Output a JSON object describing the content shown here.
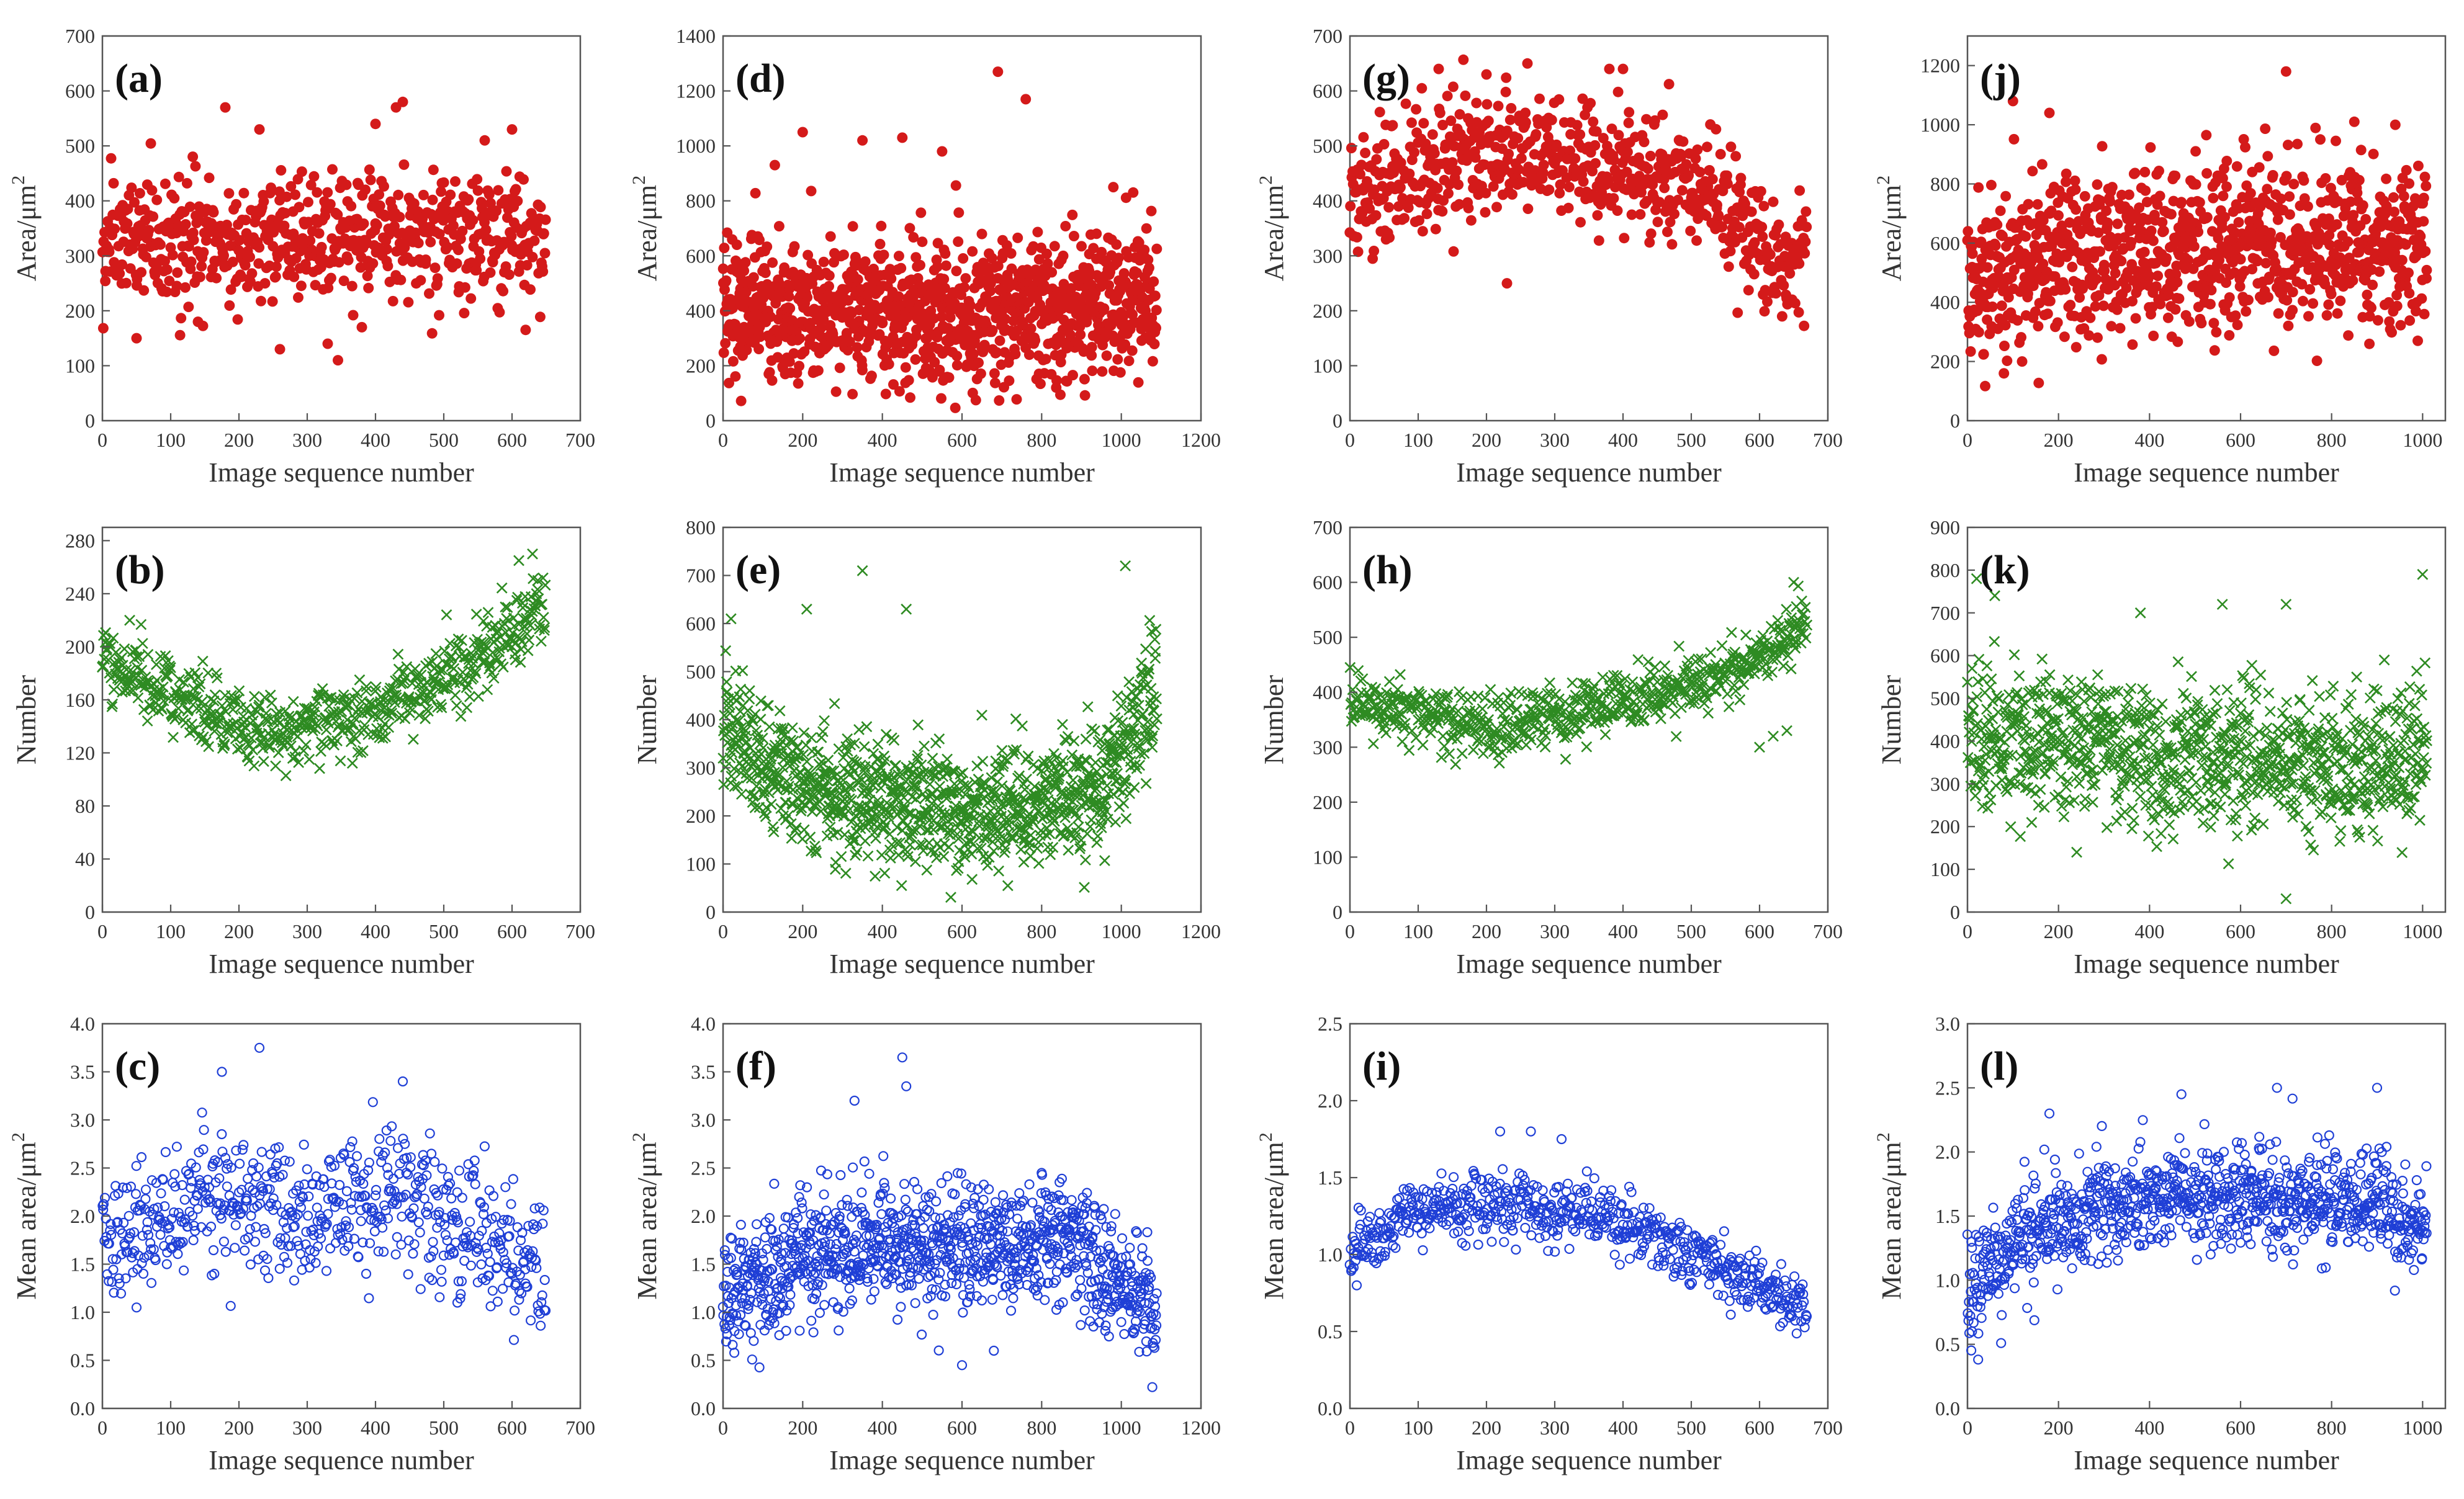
{
  "figure": {
    "colors": {
      "area": "#d41a1a",
      "number": "#2e8b22",
      "mean": "#1f3fd6",
      "axis": "#555555"
    }
  },
  "chart_data": [
    {
      "id": "a",
      "label": "(a)",
      "type": "scatter",
      "marker": "dot",
      "series": "area",
      "xlabel": "Image sequence number",
      "ylabel": "Area/μm2",
      "ylabel_text": "Area/μm",
      "ylabel_sup": "2",
      "xlim": [
        0,
        700
      ],
      "ylim": [
        0,
        700
      ],
      "xticks": [
        "0",
        "100",
        "200",
        "300",
        "400",
        "500",
        "600",
        "700"
      ],
      "yticks": [
        "0",
        "100",
        "200",
        "300",
        "400",
        "500",
        "600",
        "700"
      ],
      "n": 650,
      "trend": [
        [
          0,
          320
        ],
        [
          200,
          330
        ],
        [
          400,
          340
        ],
        [
          650,
          330
        ]
      ],
      "spread": 60,
      "outliers": [
        [
          50,
          150
        ],
        [
          140,
          180
        ],
        [
          180,
          570
        ],
        [
          230,
          530
        ],
        [
          260,
          130
        ],
        [
          330,
          140
        ],
        [
          345,
          110
        ],
        [
          380,
          170
        ],
        [
          400,
          540
        ],
        [
          430,
          570
        ],
        [
          440,
          580
        ],
        [
          560,
          510
        ],
        [
          600,
          530
        ]
      ]
    },
    {
      "id": "d",
      "label": "(d)",
      "type": "scatter",
      "marker": "dot",
      "series": "area",
      "xlabel": "Image sequence number",
      "ylabel": "Area/μm2",
      "ylabel_text": "Area/μm",
      "ylabel_sup": "2",
      "xlim": [
        0,
        1200
      ],
      "ylim": [
        0,
        1400
      ],
      "xticks": [
        "0",
        "200",
        "400",
        "600",
        "800",
        "1000",
        "1200"
      ],
      "yticks": [
        "0",
        "200",
        "400",
        "600",
        "800",
        "1000",
        "1200",
        "1400"
      ],
      "n": 1090,
      "trend": [
        [
          0,
          420
        ],
        [
          300,
          400
        ],
        [
          600,
          380
        ],
        [
          900,
          410
        ],
        [
          1090,
          440
        ]
      ],
      "spread": 130,
      "outliers": [
        [
          200,
          1050
        ],
        [
          450,
          1030
        ],
        [
          550,
          980
        ],
        [
          690,
          1270
        ],
        [
          760,
          1170
        ],
        [
          130,
          930
        ],
        [
          350,
          1020
        ],
        [
          980,
          850
        ]
      ]
    },
    {
      "id": "g",
      "label": "(g)",
      "type": "scatter",
      "marker": "dot",
      "series": "area",
      "xlabel": "Image sequence number",
      "ylabel": "Area/μm2",
      "ylabel_text": "Area/μm",
      "ylabel_sup": "2",
      "xlim": [
        0,
        700
      ],
      "ylim": [
        0,
        700
      ],
      "xticks": [
        "0",
        "100",
        "200",
        "300",
        "400",
        "500",
        "600",
        "700"
      ],
      "yticks": [
        "0",
        "100",
        "200",
        "300",
        "400",
        "500",
        "600",
        "700"
      ],
      "n": 670,
      "trend": [
        [
          0,
          400
        ],
        [
          150,
          480
        ],
        [
          300,
          490
        ],
        [
          450,
          440
        ],
        [
          550,
          400
        ],
        [
          620,
          300
        ],
        [
          670,
          300
        ]
      ],
      "spread": 55,
      "outliers": [
        [
          130,
          640
        ],
        [
          200,
          630
        ],
        [
          260,
          650
        ],
        [
          380,
          640
        ],
        [
          400,
          640
        ],
        [
          230,
          250
        ]
      ]
    },
    {
      "id": "j",
      "label": "(j)",
      "type": "scatter",
      "marker": "dot",
      "series": "area",
      "xlabel": "Image sequence number",
      "ylabel": "Area/μm2",
      "ylabel_text": "Area/μm",
      "ylabel_sup": "2",
      "xlim": [
        0,
        1050
      ],
      "ylim": [
        0,
        1300
      ],
      "xticks": [
        "0",
        "200",
        "400",
        "600",
        "800",
        "1000"
      ],
      "yticks": [
        "0",
        "200",
        "400",
        "600",
        "800",
        "1000",
        "1200"
      ],
      "n": 1010,
      "trend": [
        [
          0,
          450
        ],
        [
          200,
          560
        ],
        [
          500,
          580
        ],
        [
          800,
          600
        ],
        [
          1010,
          560
        ]
      ],
      "spread": 140,
      "outliers": [
        [
          100,
          1080
        ],
        [
          180,
          1040
        ],
        [
          700,
          1180
        ],
        [
          850,
          1010
        ],
        [
          940,
          1000
        ],
        [
          80,
          160
        ],
        [
          120,
          200
        ]
      ]
    },
    {
      "id": "b",
      "label": "(b)",
      "type": "scatter",
      "marker": "x",
      "series": "number",
      "xlabel": "Image sequence number",
      "ylabel": "Number",
      "xlim": [
        0,
        700
      ],
      "ylim": [
        0,
        290
      ],
      "xticks": [
        "0",
        "100",
        "200",
        "300",
        "400",
        "500",
        "600",
        "700"
      ],
      "yticks": [
        "0",
        "40",
        "80",
        "120",
        "160",
        "200",
        "240",
        "280"
      ],
      "n": 650,
      "trend": [
        [
          0,
          195
        ],
        [
          100,
          165
        ],
        [
          200,
          140
        ],
        [
          300,
          140
        ],
        [
          400,
          150
        ],
        [
          500,
          175
        ],
        [
          600,
          210
        ],
        [
          650,
          235
        ]
      ],
      "spread": 14,
      "outliers": [
        [
          630,
          270
        ],
        [
          610,
          265
        ],
        [
          40,
          220
        ]
      ]
    },
    {
      "id": "e",
      "label": "(e)",
      "type": "scatter",
      "marker": "x",
      "series": "number",
      "xlabel": "Image sequence number",
      "ylabel": "Number",
      "xlim": [
        0,
        1200
      ],
      "ylim": [
        0,
        800
      ],
      "xticks": [
        "0",
        "200",
        "400",
        "600",
        "800",
        "1000",
        "1200"
      ],
      "yticks": [
        "0",
        "100",
        "200",
        "300",
        "400",
        "500",
        "600",
        "700",
        "800"
      ],
      "n": 1090,
      "trend": [
        [
          0,
          380
        ],
        [
          200,
          260
        ],
        [
          400,
          220
        ],
        [
          600,
          210
        ],
        [
          800,
          220
        ],
        [
          950,
          260
        ],
        [
          1090,
          470
        ]
      ],
      "spread": 65,
      "outliers": [
        [
          350,
          710
        ],
        [
          1010,
          720
        ],
        [
          460,
          630
        ],
        [
          210,
          630
        ],
        [
          20,
          610
        ]
      ]
    },
    {
      "id": "h",
      "label": "(h)",
      "type": "scatter",
      "marker": "x",
      "series": "number",
      "xlabel": "Image sequence number",
      "ylabel": "Number",
      "xlim": [
        0,
        700
      ],
      "ylim": [
        0,
        700
      ],
      "xticks": [
        "0",
        "100",
        "200",
        "300",
        "400",
        "500",
        "600",
        "700"
      ],
      "yticks": [
        "0",
        "100",
        "200",
        "300",
        "400",
        "500",
        "600",
        "700"
      ],
      "n": 670,
      "trend": [
        [
          0,
          380
        ],
        [
          200,
          340
        ],
        [
          300,
          360
        ],
        [
          400,
          380
        ],
        [
          500,
          410
        ],
        [
          600,
          460
        ],
        [
          670,
          530
        ]
      ],
      "spread": 28,
      "outliers": [
        [
          650,
          600
        ],
        [
          600,
          300
        ],
        [
          620,
          320
        ],
        [
          640,
          330
        ]
      ]
    },
    {
      "id": "k",
      "label": "(k)",
      "type": "scatter",
      "marker": "x",
      "series": "number",
      "xlabel": "Image sequence number",
      "ylabel": "Number",
      "xlim": [
        0,
        1050
      ],
      "ylim": [
        0,
        900
      ],
      "xticks": [
        "0",
        "200",
        "400",
        "600",
        "800",
        "1000"
      ],
      "yticks": [
        "0",
        "100",
        "200",
        "300",
        "400",
        "500",
        "600",
        "700",
        "800",
        "900"
      ],
      "n": 1010,
      "trend": [
        [
          0,
          420
        ],
        [
          200,
          400
        ],
        [
          500,
          360
        ],
        [
          800,
          350
        ],
        [
          1010,
          350
        ]
      ],
      "spread": 85,
      "outliers": [
        [
          20,
          780
        ],
        [
          1000,
          790
        ],
        [
          60,
          740
        ],
        [
          560,
          720
        ],
        [
          700,
          720
        ],
        [
          380,
          700
        ],
        [
          240,
          140
        ]
      ]
    },
    {
      "id": "c",
      "label": "(c)",
      "type": "scatter",
      "marker": "circle",
      "series": "mean",
      "xlabel": "Image sequence number",
      "ylabel": "Mean area/μm2",
      "ylabel_text": "Mean area/μm",
      "ylabel_sup": "2",
      "xlim": [
        0,
        700
      ],
      "ylim": [
        0,
        4.0
      ],
      "xticks": [
        "0",
        "100",
        "200",
        "300",
        "400",
        "500",
        "600",
        "700"
      ],
      "yticks": [
        "0.0",
        "0.5",
        "1.0",
        "1.5",
        "2.0",
        "2.5",
        "3.0",
        "3.5",
        "4.0"
      ],
      "n": 650,
      "trend": [
        [
          0,
          1.7
        ],
        [
          150,
          2.2
        ],
        [
          300,
          2.0
        ],
        [
          420,
          2.3
        ],
        [
          550,
          1.8
        ],
        [
          650,
          1.5
        ]
      ],
      "spread": 0.35,
      "outliers": [
        [
          230,
          3.75
        ],
        [
          175,
          3.5
        ],
        [
          440,
          3.4
        ],
        [
          50,
          1.05
        ],
        [
          520,
          1.1
        ]
      ]
    },
    {
      "id": "f",
      "label": "(f)",
      "type": "scatter",
      "marker": "circle",
      "series": "mean",
      "xlabel": "Image sequence number",
      "ylabel": "Mean area/μm2",
      "ylabel_text": "Mean area/μm",
      "ylabel_sup": "2",
      "xlim": [
        0,
        1200
      ],
      "ylim": [
        0,
        4.0
      ],
      "xticks": [
        "0",
        "200",
        "400",
        "600",
        "800",
        "1000",
        "1200"
      ],
      "yticks": [
        "0.0",
        "0.5",
        "1.0",
        "1.5",
        "2.0",
        "2.5",
        "3.0",
        "3.5",
        "4.0"
      ],
      "n": 1090,
      "trend": [
        [
          0,
          1.1
        ],
        [
          200,
          1.6
        ],
        [
          400,
          1.7
        ],
        [
          600,
          1.6
        ],
        [
          850,
          1.8
        ],
        [
          1000,
          1.3
        ],
        [
          1090,
          1.0
        ]
      ],
      "spread": 0.32,
      "outliers": [
        [
          450,
          3.65
        ],
        [
          460,
          3.35
        ],
        [
          330,
          3.2
        ],
        [
          600,
          0.45
        ],
        [
          680,
          0.6
        ]
      ]
    },
    {
      "id": "i",
      "label": "(i)",
      "type": "scatter",
      "marker": "circle",
      "series": "mean",
      "xlabel": "Image sequence number",
      "ylabel": "Mean area/μm2",
      "ylabel_text": "Mean area/μm",
      "ylabel_sup": "2",
      "xlim": [
        0,
        700
      ],
      "ylim": [
        0,
        2.5
      ],
      "xticks": [
        "0",
        "100",
        "200",
        "300",
        "400",
        "500",
        "600",
        "700"
      ],
      "yticks": [
        "0.0",
        "0.5",
        "1.0",
        "1.5",
        "2.0",
        "2.5"
      ],
      "n": 670,
      "trend": [
        [
          0,
          1.0
        ],
        [
          100,
          1.3
        ],
        [
          250,
          1.35
        ],
        [
          400,
          1.2
        ],
        [
          500,
          1.0
        ],
        [
          600,
          0.8
        ],
        [
          670,
          0.6
        ]
      ],
      "spread": 0.1,
      "outliers": [
        [
          220,
          1.8
        ],
        [
          265,
          1.8
        ],
        [
          310,
          1.75
        ],
        [
          10,
          0.8
        ]
      ]
    },
    {
      "id": "l",
      "label": "(l)",
      "type": "scatter",
      "marker": "circle",
      "series": "mean",
      "xlabel": "Image sequence number",
      "ylabel": "Mean area/μm2",
      "ylabel_text": "Mean area/μm",
      "ylabel_sup": "2",
      "xlim": [
        0,
        1050
      ],
      "ylim": [
        0,
        3.0
      ],
      "xticks": [
        "0",
        "200",
        "400",
        "600",
        "800",
        "1000"
      ],
      "yticks": [
        "0.0",
        "0.5",
        "1.0",
        "1.5",
        "2.0",
        "2.5",
        "3.0"
      ],
      "n": 1010,
      "trend": [
        [
          0,
          0.9
        ],
        [
          100,
          1.3
        ],
        [
          300,
          1.55
        ],
        [
          600,
          1.65
        ],
        [
          900,
          1.6
        ],
        [
          1010,
          1.4
        ]
      ],
      "spread": 0.2,
      "outliers": [
        [
          680,
          2.5
        ],
        [
          900,
          2.5
        ],
        [
          470,
          2.45
        ],
        [
          180,
          2.3
        ],
        [
          10,
          0.6
        ]
      ]
    }
  ]
}
